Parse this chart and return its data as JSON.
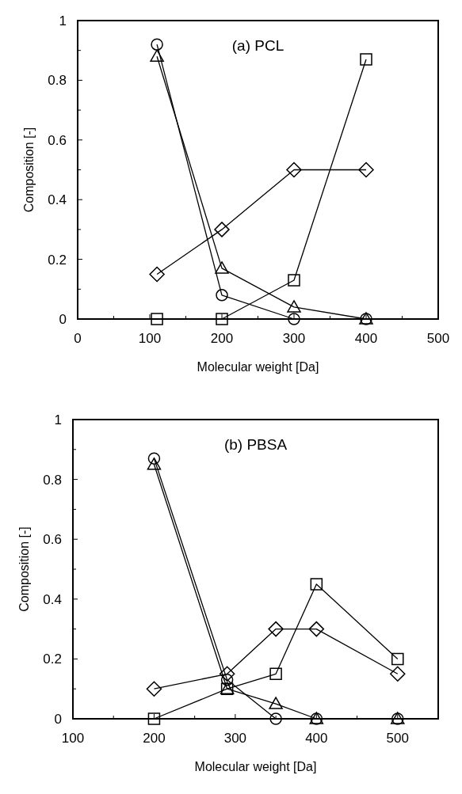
{
  "chart_data": [
    {
      "type": "line",
      "title": "(a) PCL",
      "xlabel": "Molecular weight [Da]",
      "ylabel": "Composition [-]",
      "xlim": [
        0,
        500
      ],
      "ylim": [
        0,
        1
      ],
      "xticks": [
        0,
        {
          "value": 50,
          "label": null
        },
        100,
        {
          "value": 150,
          "label": null
        },
        200,
        {
          "value": 250,
          "label": null
        },
        300,
        {
          "value": 350,
          "label": null
        },
        400,
        {
          "value": 450,
          "label": null
        },
        500
      ],
      "yticks": [
        0,
        {
          "value": 0.1,
          "label": null
        },
        0.2,
        {
          "value": 0.3,
          "label": null
        },
        0.4,
        {
          "value": 0.5,
          "label": null
        },
        0.6,
        {
          "value": 0.7,
          "label": null
        },
        0.8,
        {
          "value": 0.9,
          "label": null
        },
        1
      ],
      "x": [
        110,
        200,
        300,
        400
      ],
      "grid": false,
      "line_style": "solid",
      "series": [
        {
          "color": "#000000",
          "marker": "circle",
          "values": [
            0.92,
            0.08,
            0,
            0
          ]
        },
        {
          "color": "#000000",
          "marker": "triangle",
          "values": [
            0.88,
            0.17,
            0.04,
            0
          ]
        },
        {
          "color": "#000000",
          "marker": "square",
          "values": [
            0,
            0,
            0.13,
            0.87
          ]
        },
        {
          "color": "#000000",
          "marker": "diamond",
          "values": [
            0.15,
            0.3,
            0.5,
            0.5
          ]
        }
      ]
    },
    {
      "type": "line",
      "title": "(b) PBSA",
      "xlabel": "Molecular weight [Da]",
      "ylabel": "Composition [-]",
      "xlim": [
        100,
        550
      ],
      "ylim": [
        0,
        1
      ],
      "xticks": [
        100,
        {
          "value": 150,
          "label": null
        },
        200,
        {
          "value": 250,
          "label": null
        },
        300,
        {
          "value": 350,
          "label": null
        },
        400,
        {
          "value": 450,
          "label": null
        },
        500
      ],
      "yticks": [
        0,
        {
          "value": 0.1,
          "label": null
        },
        0.2,
        {
          "value": 0.3,
          "label": null
        },
        0.4,
        {
          "value": 0.5,
          "label": null
        },
        0.6,
        {
          "value": 0.7,
          "label": null
        },
        0.8,
        {
          "value": 0.9,
          "label": null
        },
        1
      ],
      "x": [
        200,
        290,
        350,
        400,
        500
      ],
      "grid": false,
      "line_style": "solid",
      "series": [
        {
          "color": "#000000",
          "marker": "circle",
          "values": [
            0.87,
            0.13,
            0,
            0,
            0
          ]
        },
        {
          "color": "#000000",
          "marker": "triangle",
          "values": [
            0.85,
            0.1,
            0.05,
            0,
            0
          ]
        },
        {
          "color": "#000000",
          "marker": "square",
          "values": [
            0,
            0.1,
            0.15,
            0.45,
            0.2
          ]
        },
        {
          "color": "#000000",
          "marker": "diamond",
          "values": [
            0.1,
            0.15,
            0.3,
            0.3,
            0.15
          ]
        }
      ]
    }
  ]
}
